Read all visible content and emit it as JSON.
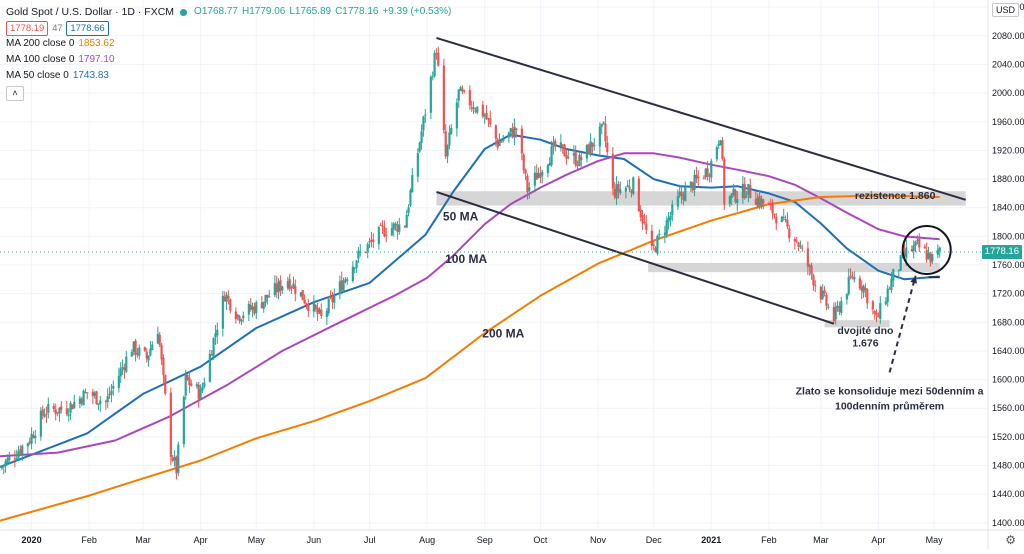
{
  "header": {
    "symbol_title": "Gold Spot / U.S. Dollar · 1D · FXCM",
    "ohlc_o": "O1768.77",
    "ohlc_h": "H1779.06",
    "ohlc_l": "L1765.89",
    "ohlc_c": "C1778.16",
    "change": "+9.39 (+0.53%)",
    "bid": "1778.19",
    "spread": "47",
    "ask": "1778.66",
    "up_color": "#26a69a",
    "down_color": "#ef5350"
  },
  "legend": [
    {
      "label": "MA 200 close 0",
      "value": "1853.62",
      "color": "#f57c00"
    },
    {
      "label": "MA 100 close 0",
      "value": "1797.10",
      "color": "#ab47bc"
    },
    {
      "label": "MA 50 close 0",
      "value": "1743.83",
      "color": "#1e6fb8"
    }
  ],
  "currency_label": "USD",
  "last_price_label": "1778.16",
  "chart_data": {
    "type": "candlestick",
    "x_labels": [
      "2020",
      "Feb",
      "Mar",
      "Apr",
      "May",
      "Jun",
      "Jul",
      "Aug",
      "Sep",
      "Oct",
      "Nov",
      "Dec",
      "2021",
      "Feb",
      "Mar",
      "Apr",
      "May"
    ],
    "x_start": "2019-12-15",
    "y_ticks": [
      1400,
      1440,
      1480,
      1520,
      1560,
      1600,
      1640,
      1680,
      1720,
      1760,
      1800,
      1840,
      1880,
      1920,
      1960,
      2000,
      2040,
      2080,
      2120
    ],
    "ylim": [
      1390,
      2130
    ],
    "last_price": 1778.16,
    "price_anchors": [
      [
        "2019-12-15",
        1476
      ],
      [
        "2019-12-31",
        1517
      ],
      [
        "2020-01-08",
        1556
      ],
      [
        "2020-01-20",
        1560
      ],
      [
        "2020-01-31",
        1582
      ],
      [
        "2020-02-10",
        1568
      ],
      [
        "2020-02-24",
        1645
      ],
      [
        "2020-03-03",
        1630
      ],
      [
        "2020-03-09",
        1672
      ],
      [
        "2020-03-16",
        1500
      ],
      [
        "2020-03-19",
        1474
      ],
      [
        "2020-03-24",
        1600
      ],
      [
        "2020-04-01",
        1580
      ],
      [
        "2020-04-14",
        1720
      ],
      [
        "2020-04-21",
        1690
      ],
      [
        "2020-05-01",
        1702
      ],
      [
        "2020-05-18",
        1740
      ],
      [
        "2020-06-05",
        1685
      ],
      [
        "2020-06-24",
        1770
      ],
      [
        "2020-07-08",
        1808
      ],
      [
        "2020-07-20",
        1818
      ],
      [
        "2020-07-31",
        1975
      ],
      [
        "2020-08-06",
        2063
      ],
      [
        "2020-08-11",
        1910
      ],
      [
        "2020-08-18",
        2000
      ],
      [
        "2020-09-01",
        1970
      ],
      [
        "2020-09-08",
        1930
      ],
      [
        "2020-09-18",
        1950
      ],
      [
        "2020-09-24",
        1865
      ],
      [
        "2020-10-09",
        1925
      ],
      [
        "2020-10-22",
        1905
      ],
      [
        "2020-11-04",
        1950
      ],
      [
        "2020-11-09",
        1862
      ],
      [
        "2020-11-20",
        1872
      ],
      [
        "2020-11-30",
        1777
      ],
      [
        "2020-12-15",
        1855
      ],
      [
        "2020-12-31",
        1895
      ],
      [
        "2021-01-06",
        1945
      ],
      [
        "2021-01-08",
        1850
      ],
      [
        "2021-01-20",
        1865
      ],
      [
        "2021-02-03",
        1835
      ],
      [
        "2021-02-16",
        1795
      ],
      [
        "2021-02-26",
        1735
      ],
      [
        "2021-03-08",
        1685
      ],
      [
        "2021-03-18",
        1745
      ],
      [
        "2021-03-24",
        1730
      ],
      [
        "2021-03-31",
        1682
      ],
      [
        "2021-04-09",
        1745
      ],
      [
        "2021-04-16",
        1777
      ],
      [
        "2021-04-22",
        1786
      ],
      [
        "2021-04-30",
        1768
      ],
      [
        "2021-05-04",
        1778
      ]
    ],
    "series": [
      {
        "name": "MA 50",
        "color": "#1e6fb8",
        "points": [
          [
            "2019-12-15",
            1478
          ],
          [
            "2020-01-31",
            1525
          ],
          [
            "2020-03-01",
            1580
          ],
          [
            "2020-04-01",
            1618
          ],
          [
            "2020-05-01",
            1672
          ],
          [
            "2020-06-01",
            1708
          ],
          [
            "2020-07-01",
            1735
          ],
          [
            "2020-07-31",
            1802
          ],
          [
            "2020-08-15",
            1862
          ],
          [
            "2020-09-01",
            1922
          ],
          [
            "2020-09-15",
            1942
          ],
          [
            "2020-10-01",
            1935
          ],
          [
            "2020-10-15",
            1922
          ],
          [
            "2020-11-01",
            1913
          ],
          [
            "2020-11-15",
            1908
          ],
          [
            "2020-12-01",
            1880
          ],
          [
            "2020-12-15",
            1870
          ],
          [
            "2021-01-01",
            1868
          ],
          [
            "2021-01-15",
            1870
          ],
          [
            "2021-02-01",
            1860
          ],
          [
            "2021-02-15",
            1848
          ],
          [
            "2021-03-01",
            1818
          ],
          [
            "2021-03-15",
            1783
          ],
          [
            "2021-04-01",
            1752
          ],
          [
            "2021-04-15",
            1740
          ],
          [
            "2021-05-04",
            1744
          ]
        ]
      },
      {
        "name": "MA 100",
        "color": "#ab47bc",
        "points": [
          [
            "2019-12-15",
            1493
          ],
          [
            "2020-01-15",
            1498
          ],
          [
            "2020-02-15",
            1515
          ],
          [
            "2020-03-15",
            1548
          ],
          [
            "2020-04-15",
            1592
          ],
          [
            "2020-05-15",
            1640
          ],
          [
            "2020-06-15",
            1680
          ],
          [
            "2020-07-15",
            1718
          ],
          [
            "2020-08-01",
            1742
          ],
          [
            "2020-08-15",
            1773
          ],
          [
            "2020-09-01",
            1817
          ],
          [
            "2020-09-15",
            1845
          ],
          [
            "2020-10-01",
            1868
          ],
          [
            "2020-10-15",
            1886
          ],
          [
            "2020-11-01",
            1905
          ],
          [
            "2020-11-15",
            1916
          ],
          [
            "2020-12-01",
            1916
          ],
          [
            "2020-12-15",
            1910
          ],
          [
            "2021-01-01",
            1900
          ],
          [
            "2021-01-15",
            1893
          ],
          [
            "2021-02-01",
            1884
          ],
          [
            "2021-02-15",
            1872
          ],
          [
            "2021-03-01",
            1853
          ],
          [
            "2021-03-15",
            1833
          ],
          [
            "2021-04-01",
            1810
          ],
          [
            "2021-04-15",
            1800
          ],
          [
            "2021-05-04",
            1796
          ]
        ]
      },
      {
        "name": "MA 200",
        "color": "#f57c00",
        "points": [
          [
            "2019-12-15",
            1403
          ],
          [
            "2020-02-01",
            1438
          ],
          [
            "2020-03-01",
            1462
          ],
          [
            "2020-04-01",
            1487
          ],
          [
            "2020-05-01",
            1518
          ],
          [
            "2020-06-01",
            1542
          ],
          [
            "2020-07-01",
            1570
          ],
          [
            "2020-07-31",
            1602
          ],
          [
            "2020-09-01",
            1665
          ],
          [
            "2020-10-01",
            1717
          ],
          [
            "2020-11-01",
            1762
          ],
          [
            "2020-12-01",
            1794
          ],
          [
            "2021-01-01",
            1822
          ],
          [
            "2021-02-01",
            1845
          ],
          [
            "2021-03-01",
            1855
          ],
          [
            "2021-04-01",
            1857
          ],
          [
            "2021-05-04",
            1855
          ]
        ]
      }
    ],
    "trendlines": [
      {
        "name": "channel-upper",
        "from": [
          "2020-08-06",
          2077
        ],
        "to": [
          "2021-05-18",
          1851
        ]
      },
      {
        "name": "channel-lower",
        "from": [
          "2020-08-06",
          1862
        ],
        "to": [
          "2021-03-08",
          1678
        ]
      },
      {
        "name": "mini-line",
        "from": [
          "2021-04-28",
          1743
        ],
        "to": [
          "2021-05-04",
          1743
        ]
      }
    ],
    "zones": [
      {
        "name": "resistance-zone",
        "from": "2020-08-06",
        "to": "2021-05-18",
        "y1": 1843,
        "y2": 1863
      },
      {
        "name": "middle-zone",
        "from": "2020-11-28",
        "to": "2021-05-04",
        "y1": 1750,
        "y2": 1763
      },
      {
        "name": "bottom-zone",
        "from": "2021-03-03",
        "to": "2021-04-07",
        "y1": 1673,
        "y2": 1683
      }
    ],
    "annotations": [
      {
        "text": "rezistence 1.860",
        "at": [
          "2021-04-10",
          1852
        ]
      },
      {
        "text": "50 MA",
        "at": [
          "2020-08-19",
          1822
        ]
      },
      {
        "text": "100 MA",
        "at": [
          "2020-08-22",
          1763
        ]
      },
      {
        "text": "200 MA",
        "at": [
          "2020-09-11",
          1659
        ]
      },
      {
        "text": "dvojité dno",
        "at": [
          "2021-03-25",
          1664
        ]
      },
      {
        "text": "1.676",
        "at": [
          "2021-03-25",
          1646
        ]
      },
      {
        "text": "Zlato se konsoliduje mezi 50denním a",
        "at": [
          "2021-04-07",
          1579
        ]
      },
      {
        "text": "100denním průměrem",
        "at": [
          "2021-04-07",
          1558
        ]
      }
    ],
    "circle_center": [
      "2021-04-27",
      1781
    ]
  }
}
